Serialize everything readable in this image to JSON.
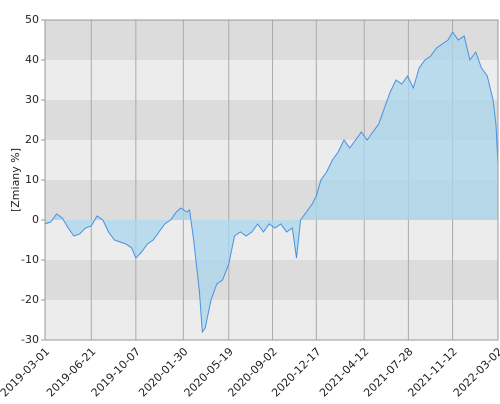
{
  "chart_data": {
    "type": "area",
    "y_label": "[Zmiany %]",
    "x": [
      "2019-03-01",
      "2019-03-15",
      "2019-03-29",
      "2019-04-12",
      "2019-04-26",
      "2019-05-10",
      "2019-05-24",
      "2019-06-07",
      "2019-06-21",
      "2019-07-05",
      "2019-07-19",
      "2019-08-02",
      "2019-08-16",
      "2019-08-30",
      "2019-09-13",
      "2019-09-27",
      "2019-10-07",
      "2019-10-21",
      "2019-11-04",
      "2019-11-18",
      "2019-12-02",
      "2019-12-16",
      "2019-12-30",
      "2020-01-13",
      "2020-01-24",
      "2020-02-07",
      "2020-02-14",
      "2020-02-24",
      "2020-03-09",
      "2020-03-16",
      "2020-03-23",
      "2020-04-06",
      "2020-04-20",
      "2020-05-04",
      "2020-05-19",
      "2020-06-02",
      "2020-06-16",
      "2020-06-30",
      "2020-07-14",
      "2020-07-28",
      "2020-08-11",
      "2020-08-25",
      "2020-09-08",
      "2020-09-22",
      "2020-10-06",
      "2020-10-20",
      "2020-10-30",
      "2020-11-09",
      "2020-11-23",
      "2020-12-07",
      "2020-12-17",
      "2020-12-28",
      "2021-01-11",
      "2021-01-25",
      "2021-02-08",
      "2021-02-22",
      "2021-03-08",
      "2021-03-22",
      "2021-04-05",
      "2021-04-19",
      "2021-05-03",
      "2021-05-17",
      "2021-05-31",
      "2021-06-14",
      "2021-06-28",
      "2021-07-12",
      "2021-07-26",
      "2021-08-09",
      "2021-08-23",
      "2021-09-06",
      "2021-09-20",
      "2021-10-04",
      "2021-10-18",
      "2021-11-01",
      "2021-11-12",
      "2021-11-26",
      "2021-12-10",
      "2021-12-24",
      "2022-01-07",
      "2022-01-21",
      "2022-02-04",
      "2022-02-18",
      "2022-02-25",
      "2022-03-02"
    ],
    "series": [
      {
        "color": "#4a90e2",
        "fill": "#a9d6ec",
        "values": [
          -1,
          -0.5,
          1.5,
          0.5,
          -2,
          -4,
          -3.5,
          -2,
          -1.5,
          1,
          0,
          -3,
          -5,
          -5.5,
          -6,
          -7,
          -9.5,
          -8,
          -6,
          -5,
          -3,
          -1,
          0,
          2,
          3,
          2,
          2.5,
          -5,
          -18,
          -28,
          -27,
          -20,
          -16,
          -15,
          -11,
          -4,
          -3,
          -4,
          -3,
          -1,
          -3,
          -1,
          -2,
          -1,
          -3,
          -2,
          -9.5,
          0,
          2,
          4,
          6,
          10,
          12,
          15,
          17,
          20,
          18,
          20,
          22,
          20,
          22,
          24,
          28,
          32,
          35,
          34,
          36,
          33,
          38,
          40,
          41,
          43,
          44,
          45,
          47,
          45,
          46,
          40,
          42,
          38,
          36,
          30,
          24,
          14
        ]
      }
    ],
    "xlim": [
      "2019-03-01",
      "2022-03-02"
    ],
    "xticks": [
      "2019-03-01",
      "2019-06-21",
      "2019-10-07",
      "2020-01-30",
      "2020-05-19",
      "2020-09-02",
      "2020-12-17",
      "2021-04-12",
      "2021-07-28",
      "2021-11-12",
      "2022-03-02"
    ],
    "ylim": [
      -30,
      50
    ],
    "yticks": [
      -30,
      -20,
      -10,
      0,
      10,
      20,
      30,
      40,
      50
    ],
    "band_colors": [
      "#dcdcdc",
      "#ececec"
    ],
    "grid": true
  }
}
